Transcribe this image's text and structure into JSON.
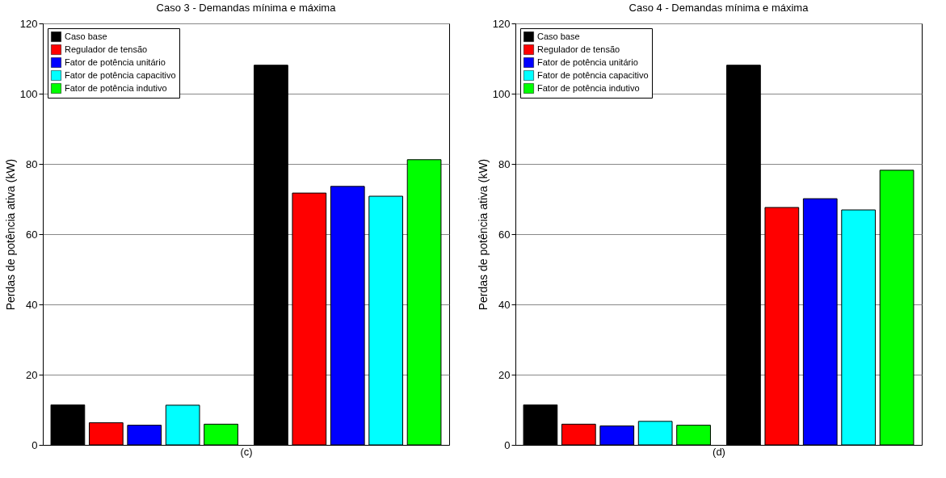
{
  "chart_data": [
    {
      "type": "bar",
      "title": "Caso 3 - Demandas mínima e máxima",
      "xlabel": "(c)",
      "ylabel": "Perdas de potência ativa (kW)",
      "categories": [
        null,
        null
      ],
      "series": [
        {
          "name": "Caso base",
          "color": "#000000",
          "values": [
            11.4,
            108.1
          ]
        },
        {
          "name": "Regulador de tensão",
          "color": "#ff0000",
          "values": [
            6.3,
            71.7
          ]
        },
        {
          "name": "Fator de potência unitário",
          "color": "#0000ff",
          "values": [
            5.6,
            73.6
          ]
        },
        {
          "name": "Fator de potência capacitivo",
          "color": "#00ffff",
          "values": [
            11.3,
            70.8
          ]
        },
        {
          "name": "Fator de potência indutivo",
          "color": "#00ff00",
          "values": [
            5.9,
            81.2
          ]
        }
      ],
      "ylim": [
        0,
        120
      ],
      "yticks": [
        0,
        20,
        40,
        60,
        80,
        100,
        120
      ],
      "grid": "y",
      "legend": "top left"
    },
    {
      "type": "bar",
      "title": "Caso 4 - Demandas mínima e máxima",
      "xlabel": "(d)",
      "ylabel": "Perdas de potência ativa (kW)",
      "categories": [
        null,
        null
      ],
      "series": [
        {
          "name": "Caso base",
          "color": "#000000",
          "values": [
            11.4,
            108.1
          ]
        },
        {
          "name": "Regulador de tensão",
          "color": "#ff0000",
          "values": [
            5.9,
            67.6
          ]
        },
        {
          "name": "Fator de potência unitário",
          "color": "#0000ff",
          "values": [
            5.4,
            70.1
          ]
        },
        {
          "name": "Fator de potência capacitivo",
          "color": "#00ffff",
          "values": [
            6.7,
            66.9
          ]
        },
        {
          "name": "Fator de potência indutivo",
          "color": "#00ff00",
          "values": [
            5.6,
            78.2
          ]
        }
      ],
      "ylim": [
        0,
        120
      ],
      "yticks": [
        0,
        20,
        40,
        60,
        80,
        100,
        120
      ],
      "grid": "y",
      "legend": "top left"
    }
  ]
}
